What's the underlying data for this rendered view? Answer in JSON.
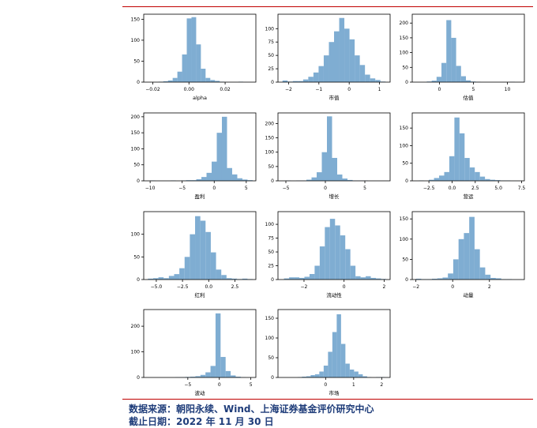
{
  "chart_data": [
    {
      "type": "histogram",
      "xlabel": "alpha",
      "x_ticks": [
        -0.02,
        0.0,
        0.02
      ],
      "x_tick_labels": [
        "−0.02",
        "0.00",
        "0.02"
      ],
      "xlim": [
        -0.025,
        0.037
      ],
      "y_ticks": [
        0,
        50,
        100,
        150
      ],
      "ylim": [
        0,
        162
      ],
      "bins": {
        "start": -0.022,
        "width": 0.0026,
        "counts": [
          0,
          0,
          1,
          2,
          4,
          10,
          25,
          66,
          152,
          155,
          90,
          32,
          10,
          5,
          3,
          1,
          0,
          0,
          0,
          1
        ]
      }
    },
    {
      "type": "histogram",
      "xlabel": "市值",
      "x_ticks": [
        -2,
        -1,
        0,
        1
      ],
      "x_tick_labels": [
        "−2",
        "−1",
        "0",
        "1"
      ],
      "xlim": [
        -2.35,
        1.35
      ],
      "y_ticks": [
        0,
        25,
        50,
        75,
        100
      ],
      "ylim": [
        0,
        127
      ],
      "bins": {
        "start": -2.2,
        "width": 0.17,
        "counts": [
          3,
          1,
          2,
          2,
          5,
          10,
          18,
          30,
          50,
          75,
          95,
          120,
          100,
          80,
          50,
          32,
          14,
          7,
          4,
          1
        ]
      }
    },
    {
      "type": "histogram",
      "xlabel": "估值",
      "x_ticks": [
        0,
        5,
        10
      ],
      "x_tick_labels": [
        "0",
        "5",
        "10"
      ],
      "xlim": [
        -4,
        12.5
      ],
      "y_ticks": [
        0,
        50,
        100,
        150,
        200
      ],
      "ylim": [
        0,
        230
      ],
      "bins": {
        "start": -3.3,
        "width": 0.72,
        "counts": [
          0,
          0,
          2,
          5,
          18,
          65,
          210,
          150,
          55,
          20,
          6,
          2,
          1,
          0,
          0,
          0,
          0,
          0,
          0,
          1
        ]
      }
    },
    {
      "type": "histogram",
      "xlabel": "盈利",
      "x_ticks": [
        -10,
        -5,
        0,
        5
      ],
      "x_tick_labels": [
        "−10",
        "−5",
        "0",
        "5"
      ],
      "xlim": [
        -11,
        6.5
      ],
      "y_ticks": [
        0,
        50,
        100,
        150,
        200
      ],
      "ylim": [
        0,
        212
      ],
      "bins": {
        "start": -10,
        "width": 0.8,
        "counts": [
          1,
          0,
          0,
          0,
          1,
          0,
          1,
          2,
          2,
          5,
          12,
          25,
          60,
          150,
          200,
          40,
          20,
          8,
          4,
          2
        ]
      }
    },
    {
      "type": "histogram",
      "xlabel": "增长",
      "x_ticks": [
        -5,
        0,
        5
      ],
      "x_tick_labels": [
        "−5",
        "0",
        "5"
      ],
      "xlim": [
        -6,
        8.2
      ],
      "y_ticks": [
        0,
        50,
        100,
        150,
        200
      ],
      "ylim": [
        0,
        237
      ],
      "bins": {
        "start": -5,
        "width": 0.65,
        "counts": [
          1,
          0,
          1,
          1,
          4,
          12,
          30,
          100,
          225,
          80,
          22,
          8,
          3,
          1,
          1,
          1,
          0,
          0,
          0,
          0
        ]
      }
    },
    {
      "type": "histogram",
      "xlabel": "营运",
      "x_ticks": [
        -2.5,
        0.0,
        2.5,
        5.0,
        7.5
      ],
      "x_tick_labels": [
        "−2.5",
        "0.0",
        "2.5",
        "5.0",
        "7.5"
      ],
      "xlim": [
        -4.3,
        7.8
      ],
      "y_ticks": [
        0,
        50,
        100,
        150
      ],
      "ylim": [
        0,
        193
      ],
      "bins": {
        "start": -3.6,
        "width": 0.55,
        "counts": [
          1,
          0,
          3,
          8,
          15,
          25,
          70,
          180,
          135,
          65,
          38,
          25,
          12,
          5,
          3,
          2,
          1,
          1,
          0,
          0
        ]
      }
    },
    {
      "type": "histogram",
      "xlabel": "红利",
      "x_ticks": [
        -5.0,
        -2.5,
        0.0,
        2.5
      ],
      "x_tick_labels": [
        "−5.0",
        "−2.5",
        "0.0",
        "2.5"
      ],
      "xlim": [
        -6.2,
        4.5
      ],
      "y_ticks": [
        0,
        50,
        100
      ],
      "ylim": [
        0,
        150
      ],
      "bins": {
        "start": -5.8,
        "width": 0.5,
        "counts": [
          2,
          3,
          5,
          3,
          8,
          12,
          25,
          50,
          100,
          140,
          130,
          105,
          60,
          22,
          10,
          3,
          2,
          1,
          2,
          1
        ]
      }
    },
    {
      "type": "histogram",
      "xlabel": "流动性",
      "x_ticks": [
        -2,
        0,
        2
      ],
      "x_tick_labels": [
        "−2",
        "0",
        "2"
      ],
      "xlim": [
        -3.3,
        2.3
      ],
      "y_ticks": [
        0,
        25,
        50,
        75,
        100
      ],
      "ylim": [
        0,
        123
      ],
      "bins": {
        "start": -3.0,
        "width": 0.255,
        "counts": [
          2,
          4,
          4,
          3,
          5,
          10,
          25,
          60,
          95,
          110,
          98,
          80,
          55,
          25,
          6,
          4,
          6,
          3,
          2,
          1
        ]
      }
    },
    {
      "type": "histogram",
      "xlabel": "动量",
      "x_ticks": [
        -2,
        0,
        2
      ],
      "x_tick_labels": [
        "−2",
        "0",
        "2"
      ],
      "xlim": [
        -2.2,
        3.9
      ],
      "y_ticks": [
        0,
        50,
        100,
        150
      ],
      "ylim": [
        0,
        168
      ],
      "bins": {
        "start": -2.0,
        "width": 0.29,
        "counts": [
          2,
          1,
          1,
          2,
          3,
          5,
          15,
          50,
          100,
          115,
          155,
          75,
          30,
          12,
          4,
          3,
          1,
          1,
          0,
          0
        ]
      }
    },
    {
      "type": "histogram",
      "xlabel": "波动",
      "x_ticks": [
        -5,
        0,
        5
      ],
      "x_tick_labels": [
        "−5",
        "0",
        "5"
      ],
      "xlim": [
        -12,
        5.8
      ],
      "y_ticks": [
        0,
        100,
        200
      ],
      "ylim": [
        0,
        265
      ],
      "bins": {
        "start": -11,
        "width": 0.8,
        "counts": [
          0,
          0,
          0,
          0,
          0,
          1,
          1,
          2,
          3,
          5,
          10,
          20,
          45,
          250,
          80,
          25,
          8,
          3,
          1,
          0
        ]
      }
    },
    {
      "type": "histogram",
      "xlabel": "市场",
      "x_ticks": [
        0,
        1,
        2
      ],
      "x_tick_labels": [
        "0",
        "1",
        "2"
      ],
      "xlim": [
        -1.7,
        2.3
      ],
      "y_ticks": [
        0,
        50,
        100,
        150
      ],
      "ylim": [
        0,
        172
      ],
      "bins": {
        "start": -1.0,
        "width": 0.155,
        "counts": [
          1,
          2,
          3,
          6,
          8,
          15,
          30,
          65,
          115,
          160,
          85,
          35,
          20,
          15,
          8,
          3,
          1,
          0,
          1,
          1
        ]
      }
    }
  ],
  "footer": {
    "source": "数据来源：朝阳永续、Wind、上海证券基金评价研究中心",
    "date": "截止日期：2022 年 11 月 30 日"
  },
  "colors": {
    "bar": "#7fadd2",
    "axis": "#000000",
    "rule": "#c00000",
    "footer_text": "#1f3d7a"
  }
}
